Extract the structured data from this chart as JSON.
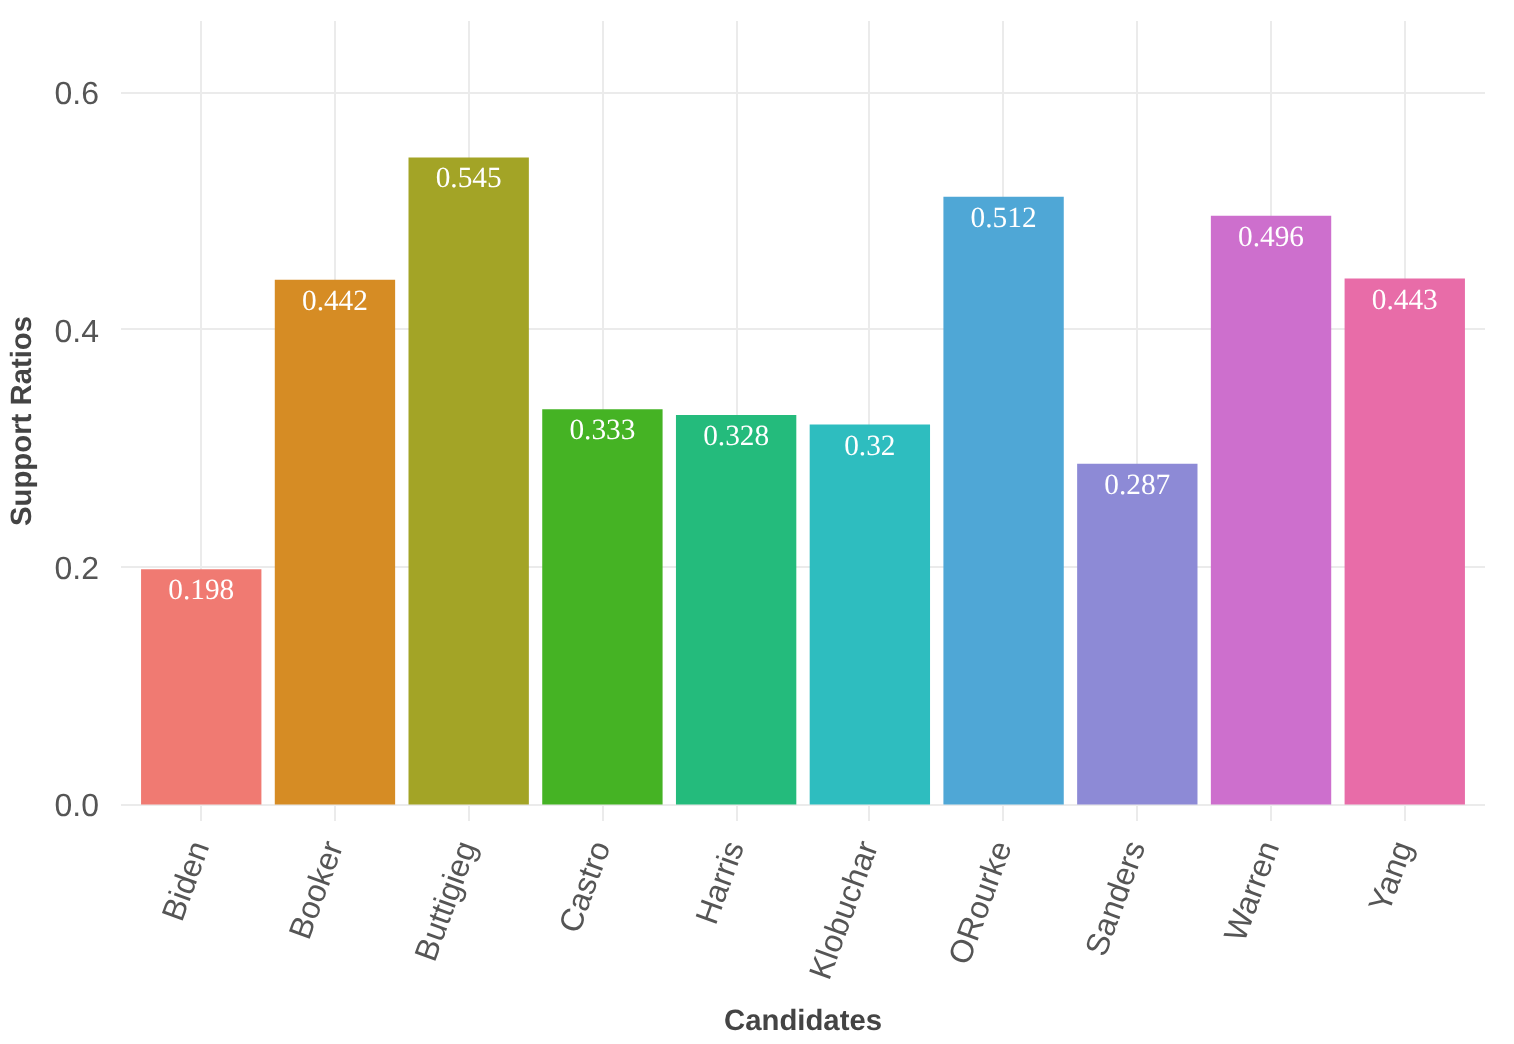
{
  "chart_data": {
    "type": "bar",
    "xlabel": "Candidates",
    "ylabel": "Support Ratios",
    "categories": [
      "Biden",
      "Booker",
      "Buttigieg",
      "Castro",
      "Harris",
      "Klobuchar",
      "ORourke",
      "Sanders",
      "Warren",
      "Yang"
    ],
    "values": [
      0.198,
      0.442,
      0.545,
      0.333,
      0.328,
      0.32,
      0.512,
      0.287,
      0.496,
      0.443
    ],
    "colors": [
      "#f07a72",
      "#d68c24",
      "#a3a426",
      "#45b324",
      "#24bb7c",
      "#2ebdbf",
      "#4fa7d6",
      "#8d8ad6",
      "#cd6fcd",
      "#e86ca8"
    ],
    "ylim": [
      -0.014,
      0.66
    ],
    "yticks": [
      {
        "value": 0,
        "label": "0.0"
      },
      {
        "value": 0.2,
        "label": "0.2"
      },
      {
        "value": 0.4,
        "label": "0.4"
      },
      {
        "value": 0.6,
        "label": "0.6"
      }
    ],
    "grid": true,
    "data_labels": true
  }
}
